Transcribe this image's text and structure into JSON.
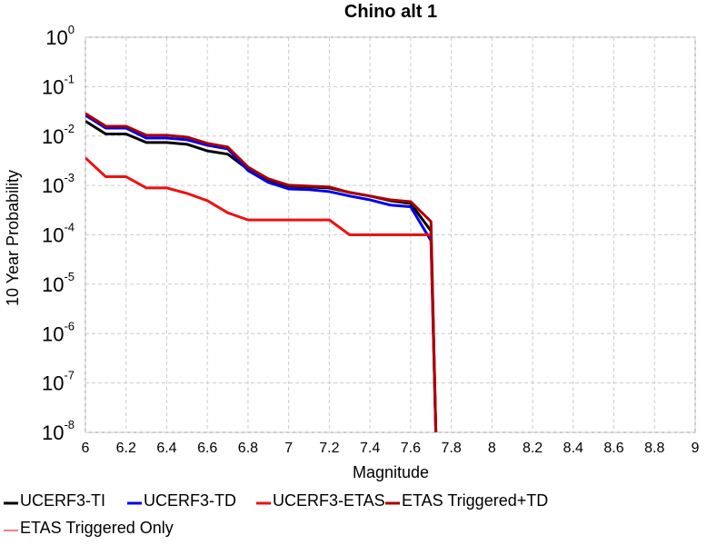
{
  "chart_data": {
    "type": "line",
    "title": "Chino alt 1",
    "xlabel": "Magnitude",
    "ylabel": "10 Year Probability",
    "x": [
      6.0,
      6.1,
      6.2,
      6.3,
      6.4,
      6.5,
      6.6,
      6.7,
      6.8,
      6.9,
      7.0,
      7.1,
      7.2,
      7.3,
      7.4,
      7.5,
      7.6,
      7.7,
      7.73
    ],
    "series": [
      {
        "name": "UCERF3-TI",
        "color": "#000000",
        "values": [
          0.02,
          0.011,
          0.011,
          0.0074,
          0.0074,
          0.0068,
          0.005,
          0.0043,
          0.0021,
          0.00125,
          0.00097,
          0.00093,
          0.00089,
          0.00072,
          0.00061,
          0.00049,
          0.00043,
          0.00012,
          1e-09
        ]
      },
      {
        "name": "UCERF3-TD",
        "color": "#0000ee",
        "values": [
          0.0262,
          0.0145,
          0.0145,
          0.0091,
          0.0091,
          0.0084,
          0.0065,
          0.0055,
          0.002,
          0.00115,
          0.00085,
          0.00082,
          0.00075,
          0.00061,
          0.00051,
          0.0004,
          0.00037,
          7.6e-05,
          1e-09
        ]
      },
      {
        "name": "UCERF3-ETAS",
        "color": "#ee1111",
        "values": [
          0.0036,
          0.0015,
          0.0015,
          0.00089,
          0.00089,
          0.00069,
          0.00049,
          0.00028,
          0.0002,
          0.0002,
          0.0002,
          0.0002,
          0.0002,
          0.0001,
          0.0001,
          0.0001,
          0.0001,
          0.0001,
          1e-09
        ]
      },
      {
        "name": "ETAS Triggered+TD",
        "color": "#aa0000",
        "values": [
          0.0286,
          0.0158,
          0.0158,
          0.0104,
          0.0104,
          0.0095,
          0.0071,
          0.006,
          0.00235,
          0.00136,
          0.00101,
          0.00097,
          0.00093,
          0.00072,
          0.00061,
          0.00051,
          0.00047,
          0.000185,
          1e-09
        ]
      },
      {
        "name": "ETAS Triggered Only",
        "color": "#f08080",
        "values": [
          0.0036,
          0.0015,
          0.0015,
          0.00089,
          0.00089,
          0.00069,
          0.00049,
          0.00028,
          0.0002,
          0.0002,
          0.0002,
          0.0002,
          0.0002,
          0.0001,
          0.0001,
          0.0001,
          0.0001,
          0.0001,
          1e-09
        ]
      }
    ],
    "xlim": [
      6,
      9
    ],
    "xticks": [
      6,
      6.2,
      6.4,
      6.6,
      6.8,
      7,
      7.2,
      7.4,
      7.6,
      7.8,
      8,
      8.2,
      8.4,
      8.6,
      8.8,
      9
    ],
    "ylim": [
      1e-08,
      1
    ],
    "log_y": true,
    "yticks": [
      {
        "value": 1,
        "label": "10",
        "exponent": "0"
      },
      {
        "value": 0.1,
        "label": "10",
        "exponent": "-1"
      },
      {
        "value": 0.01,
        "label": "10",
        "exponent": "-2"
      },
      {
        "value": 0.001,
        "label": "10",
        "exponent": "-3"
      },
      {
        "value": 0.0001,
        "label": "10",
        "exponent": "-4"
      },
      {
        "value": 1e-05,
        "label": "10",
        "exponent": "-5"
      },
      {
        "value": 1e-06,
        "label": "10",
        "exponent": "-6"
      },
      {
        "value": 1e-07,
        "label": "10",
        "exponent": "-7"
      },
      {
        "value": 1e-08,
        "label": "10",
        "exponent": "-8"
      }
    ],
    "grid": true,
    "legend": "bottom"
  }
}
